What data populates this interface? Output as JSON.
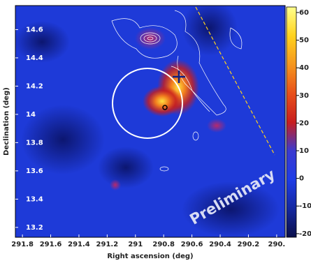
{
  "chart_data": {
    "type": "heatmap",
    "xlabel": "Right ascension (deg)",
    "ylabel": "Declination (deg)",
    "xlim": [
      291.85,
      289.94
    ],
    "xticks": [
      291.8,
      291.6,
      291.4,
      291.2,
      291.0,
      290.8,
      290.6,
      290.4,
      290.2,
      {
        "value": 290.0,
        "label": "290."
      }
    ],
    "ylim": [
      13.13,
      14.77
    ],
    "yticks": [
      14.6,
      14.4,
      14.2,
      14.0,
      13.8,
      13.6,
      13.4,
      13.2
    ],
    "clim": [
      -21.3,
      62
    ],
    "cticks": [
      60,
      50,
      40,
      30,
      20,
      10,
      0,
      -10,
      -20
    ],
    "colormap": [
      "#0a0f4a",
      "#1428a0",
      "#1e3ce6",
      "#3a3ad0",
      "#c81e1e",
      "#e8501a",
      "#f5961e",
      "#ffd21e",
      "#ffff8c"
    ],
    "annotation": "Preliminary"
  }
}
